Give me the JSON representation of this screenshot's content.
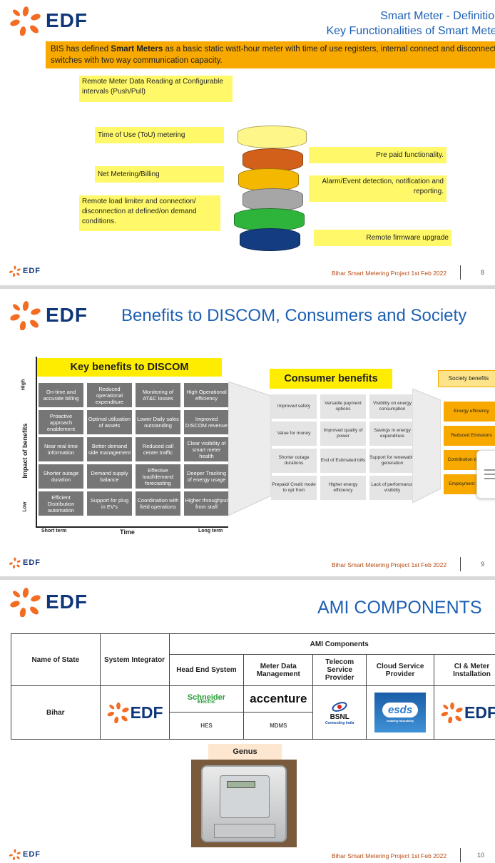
{
  "footer": {
    "project": "Bihar Smart Metering Project 1st Feb 2022",
    "brand": "EDF"
  },
  "slide1": {
    "title_line1": "Smart Meter - Definition",
    "title_line2": "Key Functionalities of Smart Meter",
    "banner_prefix": "BIS has defined ",
    "banner_bold": "Smart Meters",
    "banner_suffix": " as a basic static watt-hour meter with time of use registers, internal connect and disconnect switches with two way communication capacity.",
    "left_labels": [
      "Remote Meter Data Reading at Configurable intervals (Push/Pull)",
      "Time of Use (ToU) metering",
      "Net Metering/Billing",
      "Remote load limiter and connection/ disconnection at defined/on demand conditions."
    ],
    "right_labels": [
      "Pre paid functionality.",
      "Alarm/Event detection, notification and reporting.",
      "Remote firmware upgrade"
    ],
    "disk_colors": [
      "#fff68a",
      "#d2601a",
      "#f5b800",
      "#a6a6a6",
      "#2eb33b",
      "#143c80"
    ],
    "page_number": "8"
  },
  "slide2": {
    "title": "Benefits to DISCOM, Consumers and Society",
    "discom_header": "Key benefits to DISCOM",
    "discom_grid": [
      [
        "On-time and accurate billing",
        "Reduced operational expenditure",
        "Monitoring of AT&C losses",
        "High Operational efficiency"
      ],
      [
        "Proactive approach enablement",
        "Optimal utilization of assets",
        "Lower Daily sales outstanding",
        "Improved DISCOM revenue"
      ],
      [
        "Near real time information",
        "Better demand side management",
        "Reduced call center traffic",
        "Clear visibility of smart meter health"
      ],
      [
        "Shorter outage duration",
        "Demand supply balance",
        "Effective load/demand forecasting",
        "Deeper Tracking of energy usage"
      ],
      [
        "Efficient Distribution automation",
        "Support for plug in EV's",
        "Coordination with field operations",
        "Higher throughput from staff"
      ]
    ],
    "y_axis_label": "Impact of benefits",
    "y_high": "High",
    "y_low": "Low",
    "x_axis_label": "Time",
    "x_short": "Short term",
    "x_long": "Long term",
    "consumer_header": "Consumer benefits",
    "consumer_grid": [
      [
        "Improved safety",
        "Versatile payment options",
        "Visibility on energy consumption"
      ],
      [
        "Value for money",
        "Improved quality of power",
        "Savings in energy expenditure"
      ],
      [
        "Shorter outage durations",
        "End of Estimated bills",
        "Support for renewable generation"
      ],
      [
        "Prepaid/ Credit mode to opt from",
        "Higher energy efficiency",
        "Lack of performance visibility"
      ]
    ],
    "society_header": "Society benefits",
    "society_items": [
      "Energy efficiency",
      "Reduced Emissions",
      "Contribution to make in",
      "Employment skilled re"
    ],
    "page_number": "9"
  },
  "slide3": {
    "title": "AMI COMPONENTS",
    "table": {
      "group_header": "AMI Components",
      "col_state": "Name of State",
      "col_integrator": "System Integrator",
      "col_hes": "Head End System",
      "col_mdm": "Meter Data Management",
      "col_telecom": "Telecom Service Provider",
      "col_cloud": "Cloud Service Provider",
      "col_ci": "CI & Meter Installation",
      "state": "Bihar",
      "hes_logo_main": "Schneider",
      "hes_logo_sub": "Electric",
      "hes_abbrev": "HES",
      "mdm_logo": "accenture",
      "mdm_abbrev": "MDMS",
      "telecom_logo": "BSNL",
      "telecom_tagline": "Connecting India",
      "cloud_logo": "esds",
      "cloud_tagline": "enabling futurability"
    },
    "genus_label": "Genus",
    "page_number": "10"
  }
}
